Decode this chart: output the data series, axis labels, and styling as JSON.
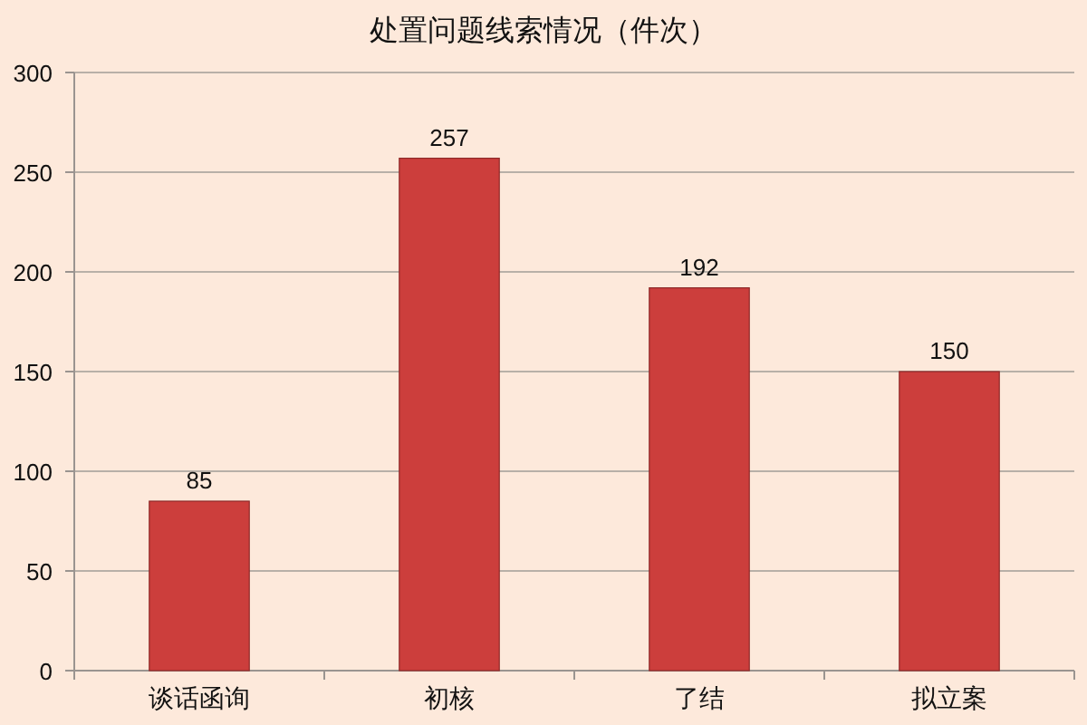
{
  "chart_data": {
    "type": "bar",
    "title": "处置问题线索情况（件次）",
    "categories": [
      "谈话函询",
      "初核",
      "了结",
      "拟立案"
    ],
    "values": [
      85,
      257,
      192,
      150
    ],
    "color": "#cc3e3c",
    "ylim": [
      0,
      300
    ],
    "yticks": [
      0,
      50,
      100,
      150,
      200,
      250,
      300
    ],
    "grid": "y",
    "data_labels": true
  }
}
